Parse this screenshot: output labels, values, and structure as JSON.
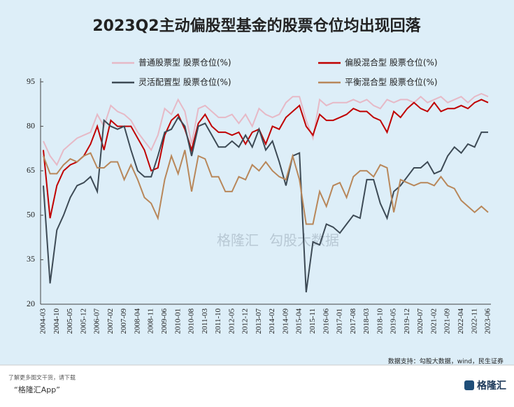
{
  "chart_data": {
    "type": "line",
    "title": "2023Q2主动偏股型基金的股票仓位均出现回落",
    "categories": [
      "2004-03",
      null,
      "2004-10",
      null,
      "2005-05",
      null,
      "2005-12",
      null,
      "2006-07",
      null,
      "2007-02",
      null,
      "2007-09",
      null,
      "2008-04",
      null,
      "2008-11",
      null,
      "2009-06",
      null,
      "2010-01",
      null,
      "2010-08",
      null,
      "2011-03",
      null,
      "2011-10",
      null,
      "2012-05",
      null,
      "2012-12",
      null,
      "2013-07",
      null,
      "2014-02",
      null,
      "2014-09",
      null,
      "2015-04",
      null,
      "2015-11",
      null,
      "2016-06",
      null,
      "2017-01",
      null,
      "2017-08",
      null,
      "2018-03",
      null,
      "2018-10",
      null,
      "2019-05",
      null,
      "2019-12",
      null,
      "2020-07",
      null,
      "2021-02",
      null,
      "2021-09",
      null,
      "2022-04",
      null,
      "2022-11",
      null,
      "2023-06"
    ],
    "series": [
      {
        "name": "普通股票型 股票仓位(%)",
        "color": "#e6b9c6",
        "values": [
          75,
          70,
          67,
          72,
          74,
          76,
          77,
          78,
          84,
          80,
          87,
          85,
          84,
          82,
          78,
          75,
          72,
          77,
          86,
          84,
          89,
          85,
          74,
          86,
          87,
          85,
          83,
          83,
          84,
          81,
          84,
          80,
          86,
          84,
          83,
          84,
          88,
          90,
          90,
          82,
          76,
          89,
          87,
          88,
          88,
          88,
          89,
          88,
          89,
          87,
          86,
          89,
          88,
          89,
          89,
          88,
          90,
          88,
          89,
          90,
          88,
          89,
          90,
          88,
          90,
          91,
          90
        ]
      },
      {
        "name": "偏股混合型 股票仓位(%)",
        "color": "#c00000",
        "values": [
          72,
          49,
          60,
          65,
          67,
          68,
          70,
          74,
          80,
          72,
          82,
          80,
          80,
          80,
          76,
          72,
          65,
          66,
          77,
          82,
          84,
          79,
          72,
          81,
          84,
          80,
          78,
          78,
          77,
          78,
          74,
          78,
          79,
          74,
          80,
          79,
          83,
          85,
          87,
          80,
          77,
          84,
          82,
          82,
          83,
          84,
          86,
          85,
          85,
          83,
          82,
          78,
          85,
          83,
          86,
          88,
          86,
          85,
          88,
          85,
          86,
          86,
          87,
          86,
          88,
          89,
          88
        ]
      },
      {
        "name": "灵活配置型 股票仓位(%)",
        "color": "#3d4a55",
        "values": [
          60,
          27,
          45,
          50,
          56,
          60,
          61,
          63,
          58,
          82,
          80,
          79,
          80,
          72,
          65,
          63,
          63,
          70,
          78,
          79,
          83,
          80,
          70,
          80,
          81,
          77,
          73,
          73,
          75,
          73,
          77,
          73,
          79,
          72,
          75,
          68,
          60,
          70,
          71,
          24,
          41,
          40,
          47,
          46,
          44,
          47,
          50,
          49,
          62,
          62,
          54,
          49,
          58,
          60,
          63,
          66,
          66,
          68,
          64,
          65,
          70,
          73,
          71,
          74,
          73,
          78,
          78
        ]
      },
      {
        "name": "平衡混合型 股票仓位(%)",
        "color": "#b8875a",
        "values": [
          70,
          64,
          64,
          67,
          69,
          68,
          70,
          71,
          66,
          66,
          68,
          68,
          62,
          67,
          62,
          56,
          54,
          49,
          62,
          70,
          64,
          72,
          58,
          70,
          69,
          63,
          63,
          58,
          58,
          63,
          62,
          67,
          65,
          68,
          65,
          63,
          62,
          70,
          62,
          47,
          47,
          58,
          53,
          60,
          61,
          56,
          63,
          65,
          65,
          63,
          67,
          66,
          51,
          62,
          61,
          60,
          61,
          61,
          60,
          63,
          60,
          59,
          55,
          53,
          51,
          53,
          51
        ]
      }
    ],
    "ylim": [
      20,
      95
    ],
    "yticks": [
      20,
      35,
      50,
      65,
      80,
      95
    ],
    "source": "数据支持：勾股大数据，wind，民生证券",
    "watermark": [
      "格隆汇",
      "勾股大数据"
    ],
    "footer": {
      "line1": "了解更多图文干货，请下载",
      "line2": "“格隆汇App”",
      "logo": "格隆汇"
    }
  }
}
